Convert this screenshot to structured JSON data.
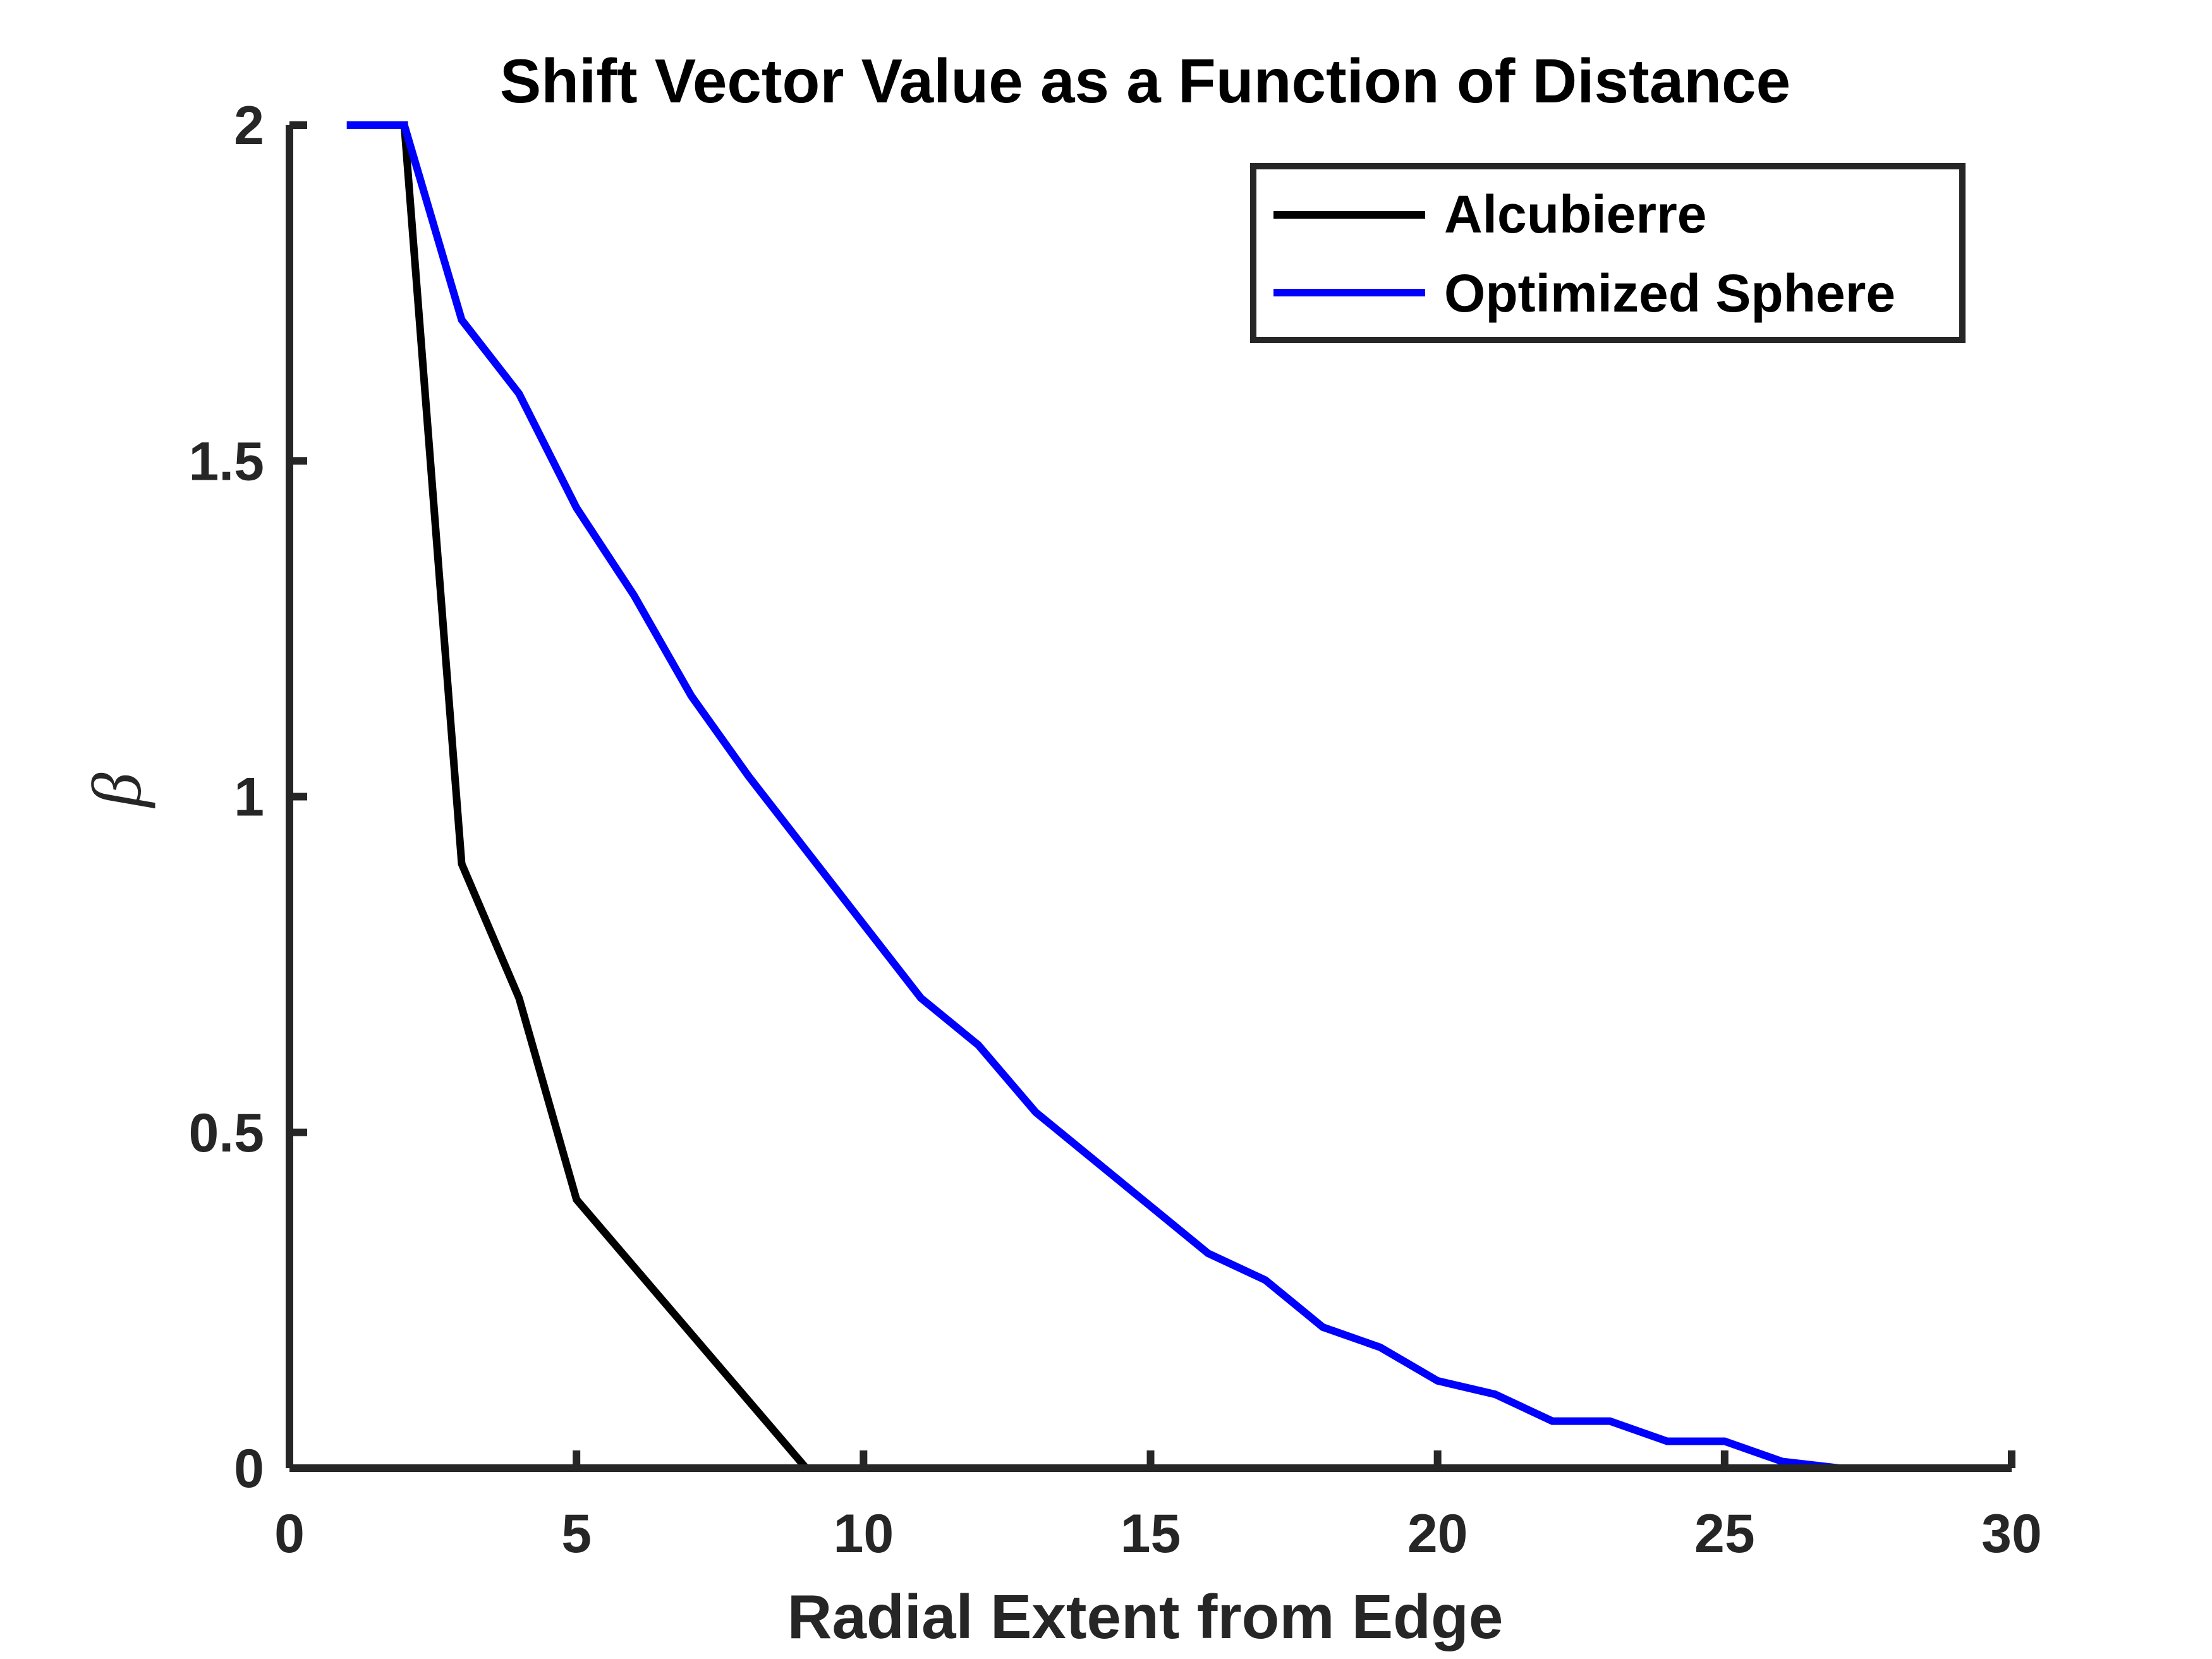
{
  "chart_data": {
    "type": "line",
    "title": "Shift Vector Value as a Function of Distance",
    "xlabel": "Radial Extent from Edge",
    "ylabel": "β",
    "xlim": [
      0,
      30
    ],
    "ylim": [
      0,
      2
    ],
    "xticks": [
      0,
      5,
      10,
      15,
      20,
      25,
      30
    ],
    "xtick_labels": [
      "0",
      "5",
      "10",
      "15",
      "20",
      "25",
      "30"
    ],
    "yticks": [
      0,
      0.5,
      1,
      1.5,
      2
    ],
    "ytick_labels": [
      "0",
      "0.5",
      "1",
      "1.5",
      "2"
    ],
    "grid": false,
    "legend_position": "top-right",
    "series": [
      {
        "name": "Alcubierre",
        "color": "#000000",
        "x": [
          1,
          2,
          3,
          4,
          5,
          6,
          7,
          8,
          9,
          10,
          11,
          12,
          13,
          14,
          15,
          16,
          17,
          18,
          19,
          20,
          21,
          22,
          23,
          24,
          25,
          26,
          27
        ],
        "y": [
          2,
          2,
          0.9,
          0.7,
          0.4,
          0.3,
          0.2,
          0.1,
          0,
          0,
          0,
          0,
          0,
          0,
          0,
          0,
          0,
          0,
          0,
          0,
          0,
          0,
          0,
          0,
          0,
          0,
          0
        ]
      },
      {
        "name": "Optimized Sphere",
        "color": "#0000ff",
        "x": [
          1,
          2,
          3,
          4,
          5,
          6,
          7,
          8,
          9,
          10,
          11,
          12,
          13,
          14,
          15,
          16,
          17,
          18,
          19,
          20,
          21,
          22,
          23,
          24,
          25,
          26,
          27
        ],
        "y": [
          2,
          2,
          1.71,
          1.6,
          1.43,
          1.3,
          1.15,
          1.03,
          0.92,
          0.81,
          0.7,
          0.63,
          0.53,
          0.46,
          0.39,
          0.32,
          0.28,
          0.21,
          0.18,
          0.13,
          0.11,
          0.07,
          0.07,
          0.04,
          0.04,
          0.01,
          0
        ]
      }
    ]
  }
}
